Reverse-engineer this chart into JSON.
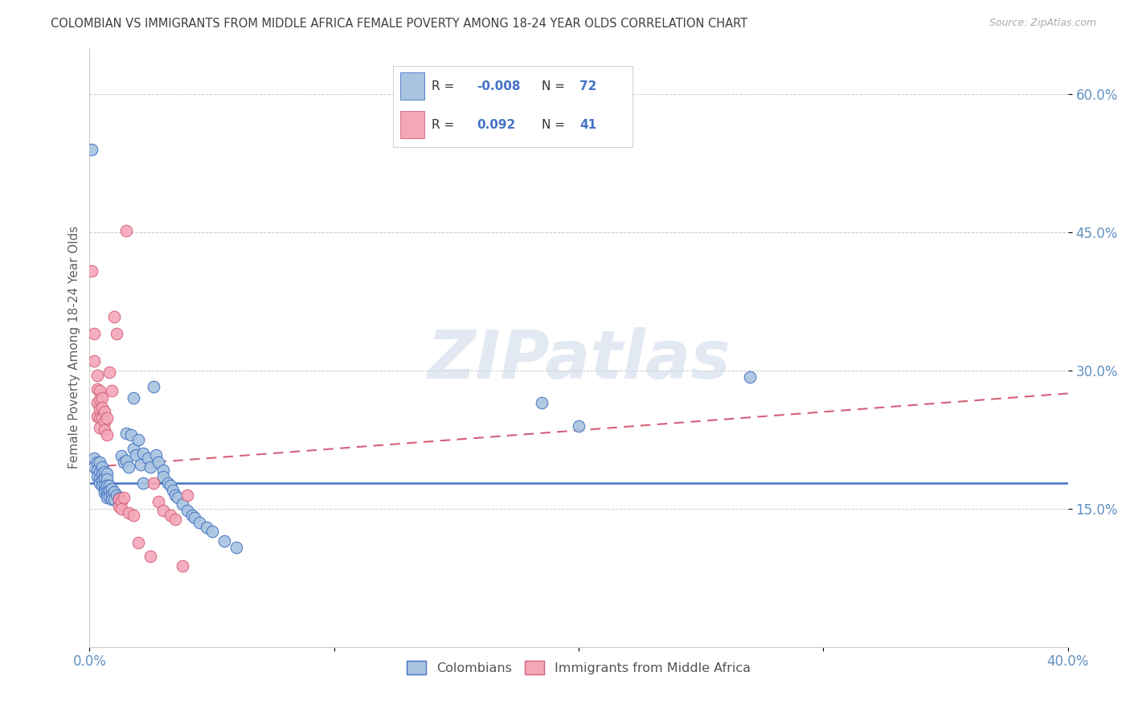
{
  "title": "COLOMBIAN VS IMMIGRANTS FROM MIDDLE AFRICA FEMALE POVERTY AMONG 18-24 YEAR OLDS CORRELATION CHART",
  "source": "Source: ZipAtlas.com",
  "ylabel": "Female Poverty Among 18-24 Year Olds",
  "xlim": [
    0.0,
    0.4
  ],
  "ylim": [
    0.0,
    0.65
  ],
  "yticks": [
    0.15,
    0.3,
    0.45,
    0.6
  ],
  "ytick_labels": [
    "15.0%",
    "30.0%",
    "45.0%",
    "60.0%"
  ],
  "xticks": [
    0.0,
    0.1,
    0.2,
    0.3,
    0.4
  ],
  "xtick_labels_show": [
    "0.0%",
    "40.0%"
  ],
  "color_blue": "#a8c4e0",
  "color_pink": "#f4a7b9",
  "line_blue": "#4472c4",
  "line_pink": "#d4607a",
  "watermark": "ZIPatlas",
  "title_color": "#404040",
  "axis_color": "#6090c0",
  "blue_line_y": [
    0.178,
    0.178
  ],
  "pink_line": [
    [
      0.0,
      0.195
    ],
    [
      0.4,
      0.275
    ]
  ],
  "colombians": [
    [
      0.001,
      0.54
    ],
    [
      0.002,
      0.205
    ],
    [
      0.002,
      0.195
    ],
    [
      0.003,
      0.2
    ],
    [
      0.003,
      0.192
    ],
    [
      0.003,
      0.185
    ],
    [
      0.004,
      0.2
    ],
    [
      0.004,
      0.19
    ],
    [
      0.004,
      0.183
    ],
    [
      0.004,
      0.178
    ],
    [
      0.005,
      0.195
    ],
    [
      0.005,
      0.188
    ],
    [
      0.005,
      0.18
    ],
    [
      0.005,
      0.175
    ],
    [
      0.006,
      0.19
    ],
    [
      0.006,
      0.183
    ],
    [
      0.006,
      0.175
    ],
    [
      0.006,
      0.17
    ],
    [
      0.006,
      0.167
    ],
    [
      0.007,
      0.188
    ],
    [
      0.007,
      0.182
    ],
    [
      0.007,
      0.175
    ],
    [
      0.007,
      0.168
    ],
    [
      0.007,
      0.165
    ],
    [
      0.007,
      0.162
    ],
    [
      0.008,
      0.175
    ],
    [
      0.008,
      0.17
    ],
    [
      0.008,
      0.163
    ],
    [
      0.009,
      0.172
    ],
    [
      0.009,
      0.165
    ],
    [
      0.009,
      0.16
    ],
    [
      0.01,
      0.168
    ],
    [
      0.01,
      0.16
    ],
    [
      0.011,
      0.165
    ],
    [
      0.012,
      0.162
    ],
    [
      0.012,
      0.155
    ],
    [
      0.013,
      0.207
    ],
    [
      0.014,
      0.2
    ],
    [
      0.015,
      0.232
    ],
    [
      0.015,
      0.202
    ],
    [
      0.016,
      0.195
    ],
    [
      0.017,
      0.23
    ],
    [
      0.018,
      0.27
    ],
    [
      0.018,
      0.215
    ],
    [
      0.019,
      0.208
    ],
    [
      0.02,
      0.225
    ],
    [
      0.021,
      0.198
    ],
    [
      0.022,
      0.21
    ],
    [
      0.022,
      0.178
    ],
    [
      0.024,
      0.205
    ],
    [
      0.025,
      0.195
    ],
    [
      0.026,
      0.282
    ],
    [
      0.027,
      0.208
    ],
    [
      0.028,
      0.2
    ],
    [
      0.03,
      0.192
    ],
    [
      0.03,
      0.185
    ],
    [
      0.032,
      0.178
    ],
    [
      0.033,
      0.175
    ],
    [
      0.034,
      0.17
    ],
    [
      0.035,
      0.165
    ],
    [
      0.036,
      0.162
    ],
    [
      0.038,
      0.155
    ],
    [
      0.04,
      0.148
    ],
    [
      0.042,
      0.143
    ],
    [
      0.043,
      0.14
    ],
    [
      0.045,
      0.135
    ],
    [
      0.048,
      0.13
    ],
    [
      0.05,
      0.125
    ],
    [
      0.055,
      0.115
    ],
    [
      0.06,
      0.108
    ],
    [
      0.185,
      0.265
    ],
    [
      0.2,
      0.24
    ],
    [
      0.27,
      0.293
    ]
  ],
  "middle_africa": [
    [
      0.001,
      0.408
    ],
    [
      0.002,
      0.34
    ],
    [
      0.002,
      0.31
    ],
    [
      0.003,
      0.295
    ],
    [
      0.003,
      0.28
    ],
    [
      0.003,
      0.265
    ],
    [
      0.003,
      0.25
    ],
    [
      0.004,
      0.278
    ],
    [
      0.004,
      0.268
    ],
    [
      0.004,
      0.258
    ],
    [
      0.004,
      0.248
    ],
    [
      0.004,
      0.238
    ],
    [
      0.005,
      0.27
    ],
    [
      0.005,
      0.26
    ],
    [
      0.005,
      0.248
    ],
    [
      0.006,
      0.255
    ],
    [
      0.006,
      0.244
    ],
    [
      0.006,
      0.235
    ],
    [
      0.007,
      0.248
    ],
    [
      0.007,
      0.23
    ],
    [
      0.008,
      0.298
    ],
    [
      0.009,
      0.278
    ],
    [
      0.01,
      0.358
    ],
    [
      0.011,
      0.34
    ],
    [
      0.012,
      0.16
    ],
    [
      0.012,
      0.152
    ],
    [
      0.013,
      0.158
    ],
    [
      0.013,
      0.15
    ],
    [
      0.014,
      0.162
    ],
    [
      0.015,
      0.452
    ],
    [
      0.016,
      0.145
    ],
    [
      0.018,
      0.143
    ],
    [
      0.02,
      0.113
    ],
    [
      0.025,
      0.098
    ],
    [
      0.026,
      0.178
    ],
    [
      0.028,
      0.158
    ],
    [
      0.03,
      0.148
    ],
    [
      0.033,
      0.143
    ],
    [
      0.035,
      0.138
    ],
    [
      0.038,
      0.088
    ],
    [
      0.04,
      0.165
    ]
  ]
}
